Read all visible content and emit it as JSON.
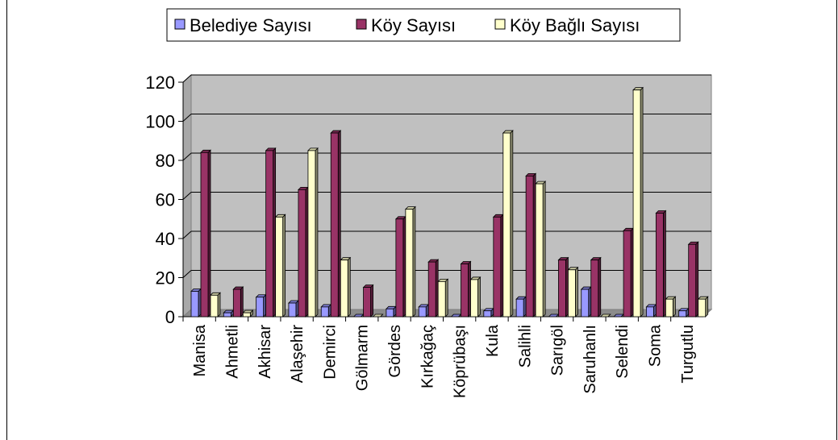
{
  "chart_data": {
    "type": "bar",
    "categories": [
      "Manisa",
      "Ahmetli",
      "Akhisar",
      "Alaşehir",
      "Demirci",
      "Gölmarm",
      "Gördes",
      "Kırkağaç",
      "Köprübaşı",
      "Kula",
      "Salihli",
      "Sarıgöl",
      "Saruhanlı",
      "Selendi",
      "Soma",
      "Turgutlu"
    ],
    "series": [
      {
        "name": "Belediye Sayısı",
        "color": "#9999ff",
        "values": [
          13,
          2,
          10,
          7,
          5,
          0,
          4,
          5,
          0,
          3,
          9,
          0,
          14,
          0,
          5,
          3
        ]
      },
      {
        "name": "Köy  Sayısı",
        "color": "#993366",
        "values": [
          84,
          14,
          85,
          65,
          94,
          15,
          50,
          28,
          27,
          51,
          72,
          29,
          29,
          44,
          53,
          37
        ]
      },
      {
        "name": "Köy Bağlı Sayısı",
        "color": "#ffffcc",
        "values": [
          11,
          2,
          51,
          85,
          29,
          0,
          55,
          18,
          19,
          94,
          68,
          24,
          0,
          116,
          9,
          9
        ]
      }
    ],
    "yticks": [
      "0",
      "20",
      "40",
      "60",
      "80",
      "100",
      "120"
    ],
    "ylim": [
      0,
      120
    ],
    "grid": true,
    "legend_position": "top",
    "title": "",
    "xlabel": "",
    "ylabel": ""
  }
}
